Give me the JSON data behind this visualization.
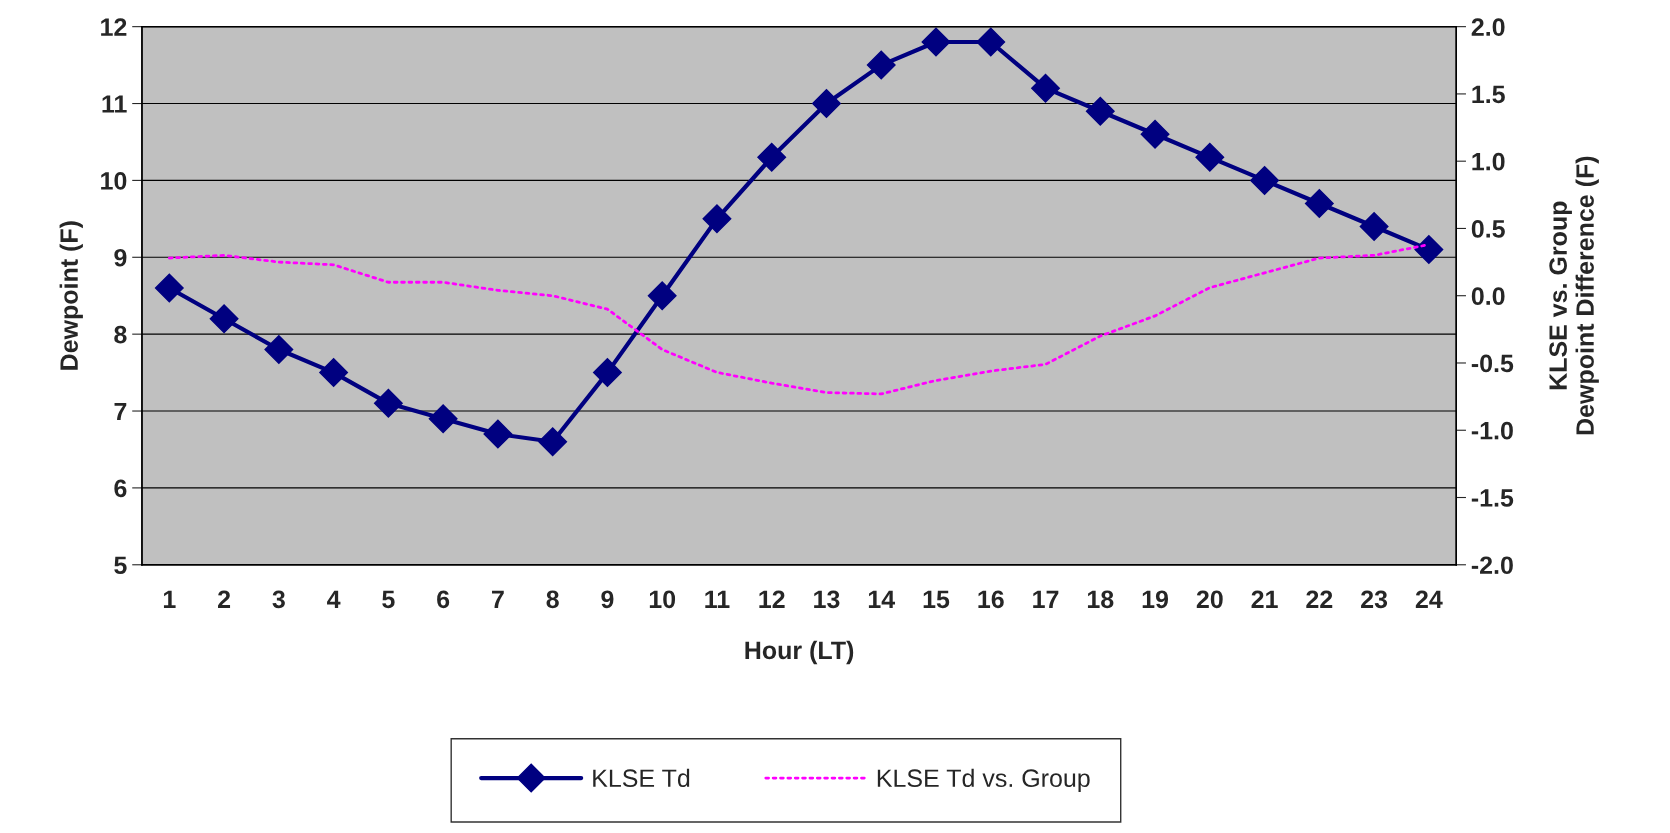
{
  "chart_data": {
    "type": "line",
    "categories": [
      "1",
      "2",
      "3",
      "4",
      "5",
      "6",
      "7",
      "8",
      "9",
      "10",
      "11",
      "12",
      "13",
      "14",
      "15",
      "16",
      "17",
      "18",
      "19",
      "20",
      "21",
      "22",
      "23",
      "24"
    ],
    "xlabel": "Hour (LT)",
    "ylabel": "Dewpoint (F)",
    "y2label": "KLSE vs. Group\nDewpoint Difference (F)",
    "ylim": [
      5,
      12
    ],
    "yticks": [
      5,
      6,
      7,
      8,
      9,
      10,
      11,
      12
    ],
    "y2lim": [
      -2.0,
      2.0
    ],
    "y2ticks": [
      {
        "value": -2.0,
        "label": "-2.0"
      },
      {
        "value": -1.5,
        "label": "-1.5"
      },
      {
        "value": -1.0,
        "label": "-1.0"
      },
      {
        "value": -0.5,
        "label": "-0.5"
      },
      {
        "value": 0.0,
        "label": "0.0"
      },
      {
        "value": 0.5,
        "label": "0.5"
      },
      {
        "value": 1.0,
        "label": "1.0"
      },
      {
        "value": 1.5,
        "label": "1.5"
      },
      {
        "value": 2.0,
        "label": "2.0"
      }
    ],
    "grid": "y",
    "legend": "bottom",
    "series": [
      {
        "name": "KLSE Td",
        "color": "#000080",
        "marker": "diamond",
        "line_style": "solid",
        "values": [
          8.6,
          8.2,
          7.8,
          7.5,
          7.1,
          6.9,
          6.7,
          6.6,
          7.5,
          8.5,
          9.5,
          10.3,
          11.0,
          11.5,
          11.8,
          11.8,
          11.2,
          10.9,
          10.6,
          10.3,
          10.0,
          9.7,
          9.4,
          9.1
        ]
      },
      {
        "name": "KLSE Td vs. Group",
        "color": "#ff00ff",
        "marker": "none",
        "line_style": "dotted",
        "axis": "y2",
        "values": [
          0.28,
          0.3,
          0.25,
          0.23,
          0.1,
          0.1,
          0.04,
          0.0,
          -0.1,
          -0.4,
          -0.57,
          -0.65,
          -0.72,
          -0.73,
          -0.63,
          -0.56,
          -0.51,
          -0.3,
          -0.15,
          0.06,
          0.17,
          0.28,
          0.3,
          0.38
        ]
      }
    ]
  }
}
